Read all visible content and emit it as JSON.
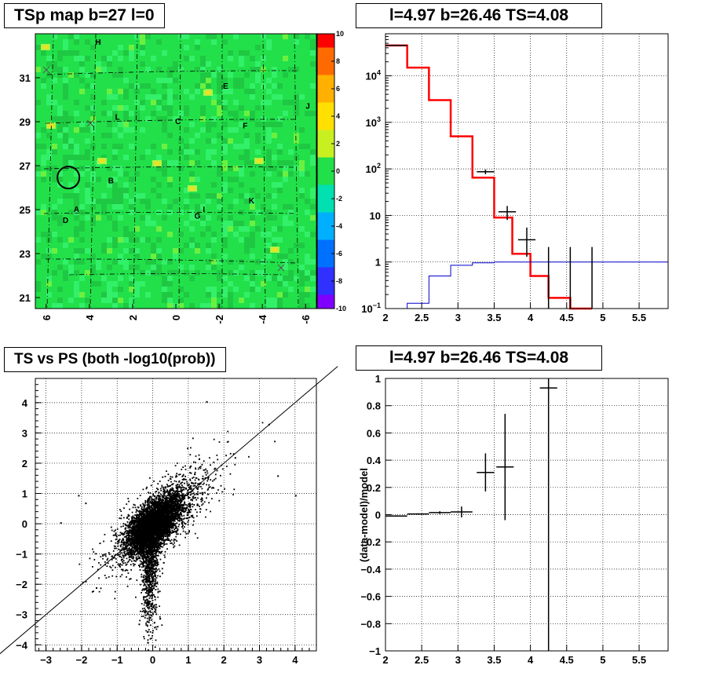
{
  "panels": {
    "map": {
      "title": "TSp map b=27 l=0",
      "colorbar_ticks": [
        "10",
        "8",
        "6",
        "4",
        "2",
        "0",
        "-2",
        "-4",
        "-6",
        "-8",
        "-10"
      ],
      "y_ticks": [
        "31",
        "29",
        "27",
        "25",
        "23",
        "21"
      ],
      "x_ticks": [
        "6",
        "4",
        "2",
        "0",
        "-2",
        "-4",
        "-6"
      ],
      "labels": [
        "H",
        "E",
        "J",
        "L",
        "C",
        "F",
        "B",
        "K",
        "A",
        "I",
        "D",
        "G"
      ]
    },
    "spectrum": {
      "title": "l=4.97 b=26.46 TS=4.08",
      "x_ticks": [
        "2",
        "2.5",
        "3",
        "3.5",
        "4",
        "4.5",
        "5",
        "5.5"
      ]
    },
    "scatter": {
      "title": "TS vs PS (both -log10(prob))",
      "x_ticks": [
        "−3",
        "−2",
        "−1",
        "0",
        "1",
        "2",
        "3",
        "4"
      ],
      "y_ticks": [
        "4",
        "3",
        "2",
        "1",
        "0",
        "−1",
        "−2",
        "−3",
        "−4"
      ]
    },
    "residual": {
      "title": "l=4.97 b=26.46 TS=4.08",
      "ylabel": "(data-model)/model",
      "x_ticks": [
        "2",
        "2.5",
        "3",
        "3.5",
        "4",
        "4.5",
        "5",
        "5.5"
      ],
      "y_ticks": [
        "1",
        "0.8",
        "0.6",
        "0.4",
        "0.2",
        "0",
        "−0.2",
        "−0.4",
        "−0.6",
        "−0.8",
        "−1"
      ]
    }
  },
  "chart_data": [
    {
      "type": "heatmap",
      "title": "TSp map b=27 l=0",
      "xlim": [
        6.5,
        -6.5
      ],
      "ylim": [
        20.5,
        33
      ],
      "zlim": [
        -10,
        10
      ],
      "colors": {
        "background": "#22e04a",
        "dark": "#1fc842",
        "light": "#33f06a",
        "hot": "#f0e020"
      },
      "labels": [
        {
          "text": "H",
          "x": 3.6,
          "y": 32.6
        },
        {
          "text": "E",
          "x": -2.3,
          "y": 30.6
        },
        {
          "text": "J",
          "x": -6.1,
          "y": 29.7
        },
        {
          "text": "L",
          "x": 2.7,
          "y": 29.2
        },
        {
          "text": "C",
          "x": -0.1,
          "y": 29.0
        },
        {
          "text": "F",
          "x": -3.2,
          "y": 28.8
        },
        {
          "text": "B",
          "x": 3.0,
          "y": 26.3
        },
        {
          "text": "K",
          "x": -3.5,
          "y": 25.4
        },
        {
          "text": "A",
          "x": 4.6,
          "y": 25.0
        },
        {
          "text": "I",
          "x": -1.3,
          "y": 25.0
        },
        {
          "text": "D",
          "x": 5.1,
          "y": 24.5
        },
        {
          "text": "G",
          "x": -1.0,
          "y": 24.7
        }
      ],
      "marker_circle": {
        "x": 4.97,
        "y": 26.46
      }
    },
    {
      "type": "line",
      "title": "l=4.97 b=26.46 TS=4.08",
      "xlim": [
        2,
        5.9
      ],
      "ylim": [
        0.1,
        80000
      ],
      "log_y": true,
      "y_tick_labels": [
        "10^-1",
        "1",
        "10",
        "10^2",
        "10^3",
        "10^4"
      ],
      "series": [
        {
          "color": "#ff0000",
          "step_edges": [
            2,
            2.3,
            2.6,
            2.9,
            3.2,
            3.5,
            3.75,
            4.0,
            4.25,
            4.55,
            4.85
          ],
          "values": [
            45000,
            15000,
            3000,
            500,
            65,
            9,
            1.5,
            0.5,
            0.17,
            0.1
          ]
        },
        {
          "color": "#0000cc",
          "step_edges": [
            2,
            2.3,
            2.6,
            2.9,
            3.2,
            3.5,
            3.75,
            4.0,
            4.25,
            5.9
          ],
          "values": [
            0.1,
            0.13,
            0.5,
            0.85,
            0.96,
            1.0,
            1.0,
            1.0,
            1.0
          ]
        }
      ],
      "points": [
        {
          "x": 2.15,
          "y": 45000,
          "xerr": 0.15
        },
        {
          "x": 3.38,
          "y": 87,
          "xerr": 0.12,
          "yerr": 10
        },
        {
          "x": 3.68,
          "y": 12,
          "xerr": 0.12,
          "yerr": 4
        },
        {
          "x": 3.95,
          "y": 3.0,
          "xerr": 0.12,
          "ylo": 1.3,
          "yhi": 5.5
        },
        {
          "x": 4.25,
          "y": 1,
          "xerr": 0,
          "ylo": 0.1,
          "yhi": 2.1
        },
        {
          "x": 4.55,
          "y": 1,
          "xerr": 0,
          "ylo": 0.1,
          "yhi": 2.1
        },
        {
          "x": 4.85,
          "y": 1,
          "xerr": 0,
          "ylo": 0.1,
          "yhi": 2.1
        }
      ]
    },
    {
      "type": "scatter",
      "title": "TS vs PS (both -log10(prob))",
      "xlim": [
        -3.3,
        4.6
      ],
      "ylim": [
        -4.2,
        4.8
      ],
      "diagonal": true
    },
    {
      "type": "scatter",
      "title": "l=4.97 b=26.46 TS=4.08",
      "xlim": [
        2,
        5.9
      ],
      "ylim": [
        -1,
        1
      ],
      "ylabel": "(data-model)/model",
      "points": [
        {
          "x": 2.15,
          "y": -0.01,
          "xerr": 0.15,
          "yerr": 0.005
        },
        {
          "x": 2.45,
          "y": 0.005,
          "xerr": 0.15,
          "yerr": 0.005
        },
        {
          "x": 2.75,
          "y": 0.015,
          "xerr": 0.15,
          "yerr": 0.01
        },
        {
          "x": 3.05,
          "y": 0.02,
          "xerr": 0.15,
          "yerr": 0.04
        },
        {
          "x": 3.38,
          "y": 0.31,
          "xerr": 0.12,
          "yerr": 0.14
        },
        {
          "x": 3.65,
          "y": 0.35,
          "xerr": 0.12,
          "ylo": -0.04,
          "yhi": 0.74
        },
        {
          "x": 4.25,
          "y": 0.93,
          "xerr": 0.12,
          "ylo": -1,
          "yhi": 1
        }
      ]
    }
  ]
}
